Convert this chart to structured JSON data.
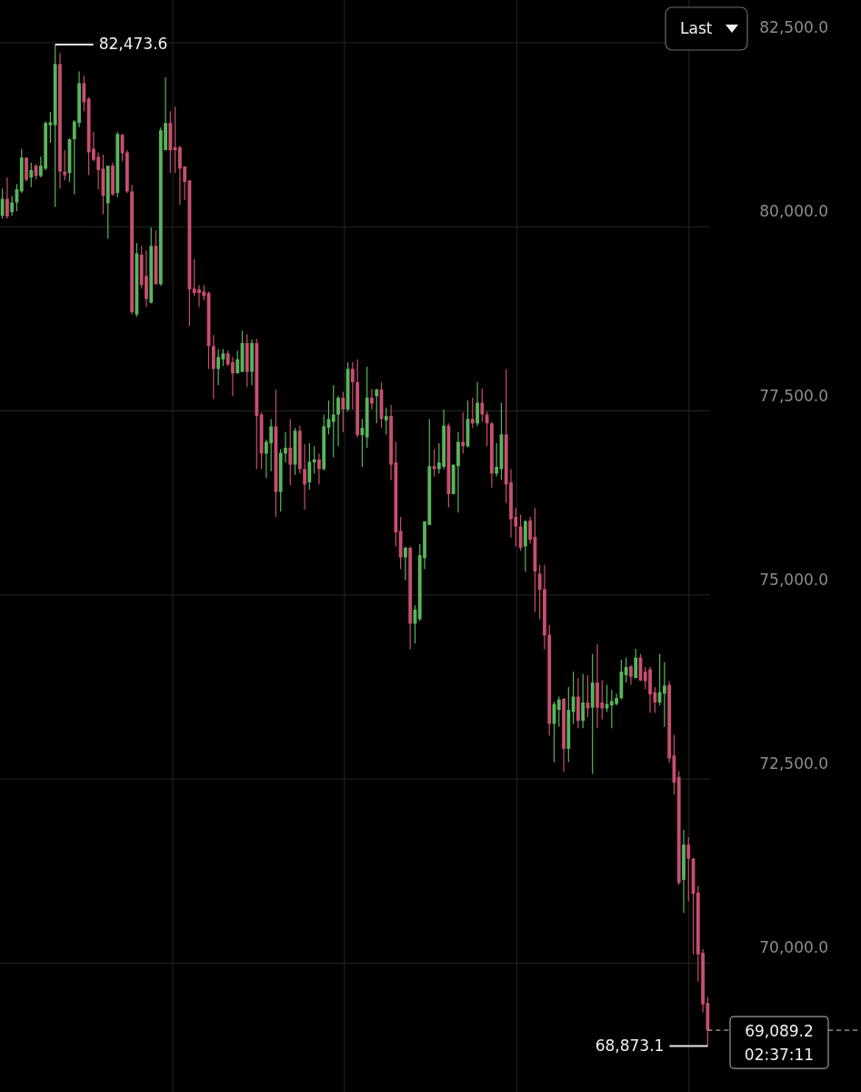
{
  "chart_data": {
    "type": "candlestick",
    "categories": [
      null,
      null,
      null,
      null,
      null,
      null,
      null,
      null,
      null,
      null,
      null,
      null,
      null,
      null,
      null,
      null,
      null,
      null,
      null,
      null,
      null,
      null,
      null,
      null,
      null,
      null,
      null,
      null,
      null,
      null,
      null,
      null,
      null,
      null,
      null,
      null,
      null,
      null,
      null,
      null,
      null,
      null,
      null,
      null,
      null,
      null,
      null,
      null,
      null,
      null,
      null,
      null,
      null,
      null,
      null,
      null,
      null,
      null,
      null,
      null,
      null,
      null,
      null,
      null,
      null,
      null,
      null,
      null,
      null,
      null,
      null,
      null,
      null,
      null,
      null,
      null,
      null,
      null,
      null,
      null,
      null,
      null,
      null,
      null,
      null,
      null,
      null,
      null,
      null,
      null,
      null,
      null,
      null,
      null,
      null,
      null,
      null,
      null,
      null,
      null,
      null,
      null,
      null,
      null,
      null,
      null,
      null,
      null,
      null,
      null,
      null,
      null,
      null,
      null,
      null,
      null,
      null,
      null,
      null,
      null,
      null,
      null,
      null,
      null,
      null,
      null,
      null,
      null,
      null,
      null,
      null,
      null,
      null,
      null,
      null,
      null,
      null,
      null,
      null,
      null,
      null,
      null,
      null,
      null,
      null,
      null,
      null,
      null
    ],
    "ohlc": [
      [
        80150,
        80520,
        80110,
        80380
      ],
      [
        80380,
        80670,
        80110,
        80140
      ],
      [
        80200,
        80420,
        80150,
        80330
      ],
      [
        80330,
        80580,
        80210,
        80510
      ],
      [
        80480,
        81060,
        80460,
        80940
      ],
      [
        80940,
        80940,
        80610,
        80640
      ],
      [
        80670,
        80870,
        80540,
        80770
      ],
      [
        80830,
        80850,
        80640,
        80690
      ],
      [
        80690,
        80950,
        80670,
        80830
      ],
      [
        80790,
        81430,
        80770,
        81410
      ],
      [
        81380,
        81560,
        81140,
        81420
      ],
      [
        81380,
        82473.6,
        80270,
        82210
      ],
      [
        82210,
        82360,
        80520,
        80750
      ],
      [
        80750,
        81040,
        80630,
        80700
      ],
      [
        80730,
        81200,
        80610,
        81190
      ],
      [
        81190,
        81450,
        80440,
        81430
      ],
      [
        81410,
        82110,
        81350,
        81950
      ],
      [
        81950,
        82050,
        81570,
        81690
      ],
      [
        81740,
        81760,
        80700,
        81010
      ],
      [
        81060,
        81290,
        80890,
        80910
      ],
      [
        80950,
        81010,
        80510,
        80770
      ],
      [
        80790,
        80980,
        80170,
        80420
      ],
      [
        80320,
        80830,
        79840,
        80830
      ],
      [
        80830,
        80870,
        80420,
        80440
      ],
      [
        80460,
        81290,
        80400,
        81260
      ],
      [
        81250,
        81260,
        80890,
        81000
      ],
      [
        81010,
        81040,
        80460,
        80480
      ],
      [
        80480,
        80570,
        78810,
        78840
      ],
      [
        78810,
        79780,
        78780,
        79640
      ],
      [
        79620,
        79740,
        79160,
        79210
      ],
      [
        79330,
        79680,
        78910,
        79020
      ],
      [
        78970,
        79990,
        78960,
        79740
      ],
      [
        79740,
        79950,
        79210,
        79220
      ],
      [
        79220,
        81350,
        79200,
        81310
      ],
      [
        81040,
        82030,
        81040,
        81410
      ],
      [
        81410,
        81570,
        80730,
        81040
      ],
      [
        81080,
        81630,
        80730,
        81040
      ],
      [
        81080,
        81100,
        80300,
        80790
      ],
      [
        80820,
        80820,
        80360,
        80610
      ],
      [
        80630,
        80630,
        78650,
        79150
      ],
      [
        79160,
        79560,
        79060,
        79100
      ],
      [
        79150,
        79210,
        78910,
        79100
      ],
      [
        79120,
        79210,
        79000,
        79060
      ],
      [
        79100,
        79120,
        78070,
        78380
      ],
      [
        78380,
        78530,
        77660,
        78070
      ],
      [
        78070,
        78340,
        77850,
        78230
      ],
      [
        78200,
        78340,
        78110,
        78280
      ],
      [
        78280,
        78320,
        78110,
        78130
      ],
      [
        78160,
        78230,
        77700,
        78010
      ],
      [
        78010,
        78320,
        78010,
        78200
      ],
      [
        78030,
        78590,
        78030,
        78420
      ],
      [
        78420,
        78540,
        77820,
        78030
      ],
      [
        78030,
        78470,
        77850,
        78420
      ],
      [
        78420,
        78480,
        76710,
        77430
      ],
      [
        77450,
        77480,
        76710,
        76920
      ],
      [
        76920,
        77110,
        76590,
        77080
      ],
      [
        77060,
        77390,
        76680,
        77290
      ],
      [
        77290,
        77790,
        76060,
        76400
      ],
      [
        76400,
        76980,
        76130,
        76930
      ],
      [
        76920,
        77210,
        76800,
        77000
      ],
      [
        77000,
        77390,
        76490,
        76770
      ],
      [
        76770,
        77270,
        76630,
        77230
      ],
      [
        77230,
        77300,
        76650,
        76710
      ],
      [
        76710,
        77050,
        76160,
        76500
      ],
      [
        76530,
        77060,
        76430,
        76810
      ],
      [
        76800,
        77020,
        76650,
        76840
      ],
      [
        76840,
        76920,
        76500,
        76710
      ],
      [
        76710,
        77450,
        76690,
        77290
      ],
      [
        77270,
        77640,
        77180,
        77390
      ],
      [
        77350,
        77850,
        76870,
        77450
      ],
      [
        77450,
        77700,
        77020,
        77680
      ],
      [
        77680,
        77760,
        77210,
        77520
      ],
      [
        77520,
        78160,
        77490,
        78070
      ],
      [
        78070,
        78160,
        77520,
        77890
      ],
      [
        77890,
        78200,
        77140,
        77170
      ],
      [
        77170,
        77390,
        76740,
        77270
      ],
      [
        77140,
        78100,
        77000,
        77680
      ],
      [
        77680,
        77800,
        77520,
        77600
      ],
      [
        77700,
        77800,
        77330,
        77790
      ],
      [
        77790,
        77890,
        77270,
        77390
      ],
      [
        77370,
        77540,
        77180,
        77430
      ],
      [
        77430,
        77580,
        76560,
        76770
      ],
      [
        76800,
        77080,
        75660,
        75850
      ],
      [
        75870,
        76060,
        75350,
        75510
      ],
      [
        75510,
        75660,
        75200,
        75640
      ],
      [
        75640,
        75660,
        74260,
        74610
      ],
      [
        74610,
        74860,
        74340,
        74800
      ],
      [
        74670,
        75690,
        74650,
        75540
      ],
      [
        75500,
        76000,
        75350,
        76000
      ],
      [
        75950,
        77390,
        75950,
        76750
      ],
      [
        76750,
        76980,
        76610,
        76710
      ],
      [
        76710,
        77060,
        76650,
        76800
      ],
      [
        76740,
        77520,
        76710,
        77300
      ],
      [
        77300,
        77330,
        76190,
        76370
      ],
      [
        76370,
        76770,
        76370,
        76770
      ],
      [
        76750,
        77210,
        76120,
        77080
      ],
      [
        77080,
        77480,
        76920,
        77020
      ],
      [
        77020,
        77640,
        77000,
        77390
      ],
      [
        77390,
        77680,
        77270,
        77330
      ],
      [
        77330,
        77890,
        77290,
        77610
      ],
      [
        77610,
        77800,
        77350,
        77450
      ],
      [
        77450,
        77490,
        77020,
        77330
      ],
      [
        77330,
        77350,
        76460,
        76650
      ],
      [
        76650,
        77060,
        76610,
        76740
      ],
      [
        76710,
        77610,
        76560,
        77180
      ],
      [
        77180,
        78070,
        76250,
        76500
      ],
      [
        76530,
        76710,
        75780,
        76030
      ],
      [
        76060,
        76180,
        75660,
        75930
      ],
      [
        75930,
        76090,
        75600,
        75640
      ],
      [
        75660,
        76020,
        75320,
        76000
      ],
      [
        76010,
        76060,
        75700,
        75750
      ],
      [
        75790,
        76180,
        74770,
        75320
      ],
      [
        75290,
        75410,
        74670,
        75070
      ],
      [
        75080,
        75410,
        74260,
        74450
      ],
      [
        74460,
        74590,
        73090,
        73250
      ],
      [
        73250,
        73550,
        72730,
        73520
      ],
      [
        73440,
        73620,
        73210,
        73580
      ],
      [
        73590,
        73600,
        72600,
        72910
      ],
      [
        72910,
        73750,
        72730,
        73440
      ],
      [
        73410,
        73960,
        73250,
        73620
      ],
      [
        73620,
        73870,
        73190,
        73290
      ],
      [
        73290,
        73930,
        73190,
        73540
      ],
      [
        73540,
        73910,
        73340,
        73460
      ],
      [
        73470,
        74200,
        72570,
        73810
      ],
      [
        73810,
        74330,
        73190,
        73470
      ],
      [
        73540,
        73840,
        73310,
        73460
      ],
      [
        73460,
        73780,
        73410,
        73520
      ],
      [
        73500,
        73710,
        73190,
        73560
      ],
      [
        73520,
        73660,
        73500,
        73600
      ],
      [
        73600,
        74120,
        73580,
        73960
      ],
      [
        73910,
        74150,
        73810,
        74020
      ],
      [
        74030,
        74050,
        73780,
        73890
      ],
      [
        73870,
        74270,
        73870,
        74150
      ],
      [
        74150,
        74200,
        73830,
        73840
      ],
      [
        73960,
        74020,
        73720,
        73830
      ],
      [
        73990,
        74020,
        73400,
        73650
      ],
      [
        73680,
        73750,
        73400,
        73540
      ],
      [
        73540,
        74200,
        73500,
        73680
      ],
      [
        73660,
        74090,
        73210,
        73770
      ],
      [
        73780,
        73830,
        72720,
        72780
      ],
      [
        72820,
        73100,
        72290,
        72450
      ],
      [
        72530,
        72610,
        71060,
        71090
      ],
      [
        71130,
        71810,
        70680,
        71610
      ],
      [
        71610,
        71710,
        70840,
        71420
      ],
      [
        71420,
        71430,
        70120,
        70940
      ],
      [
        70960,
        71050,
        69750,
        70120
      ],
      [
        70140,
        70190,
        69330,
        69440
      ],
      [
        69460,
        69540,
        68873.1,
        69089.2
      ]
    ],
    "ylim": [
      68250,
      83080
    ],
    "yticks": [
      {
        "value": 82500,
        "label": "82,500.0"
      },
      {
        "value": 80000,
        "label": "80,000.0"
      },
      {
        "value": 77500,
        "label": "77,500.0"
      },
      {
        "value": 75000,
        "label": "75,000.0"
      },
      {
        "value": 72500,
        "label": "72,500.0"
      },
      {
        "value": 70000,
        "label": "70,000.0"
      }
    ],
    "grid": "y",
    "tick_labels": "y",
    "ref_lines": [
      {
        "axis": "y",
        "value": 69089.2,
        "label": "69,089.2",
        "line_style": "dashed"
      }
    ],
    "annotations": [
      "82,473.6",
      "68,873.1",
      "02:37:11",
      "Last"
    ]
  }
}
